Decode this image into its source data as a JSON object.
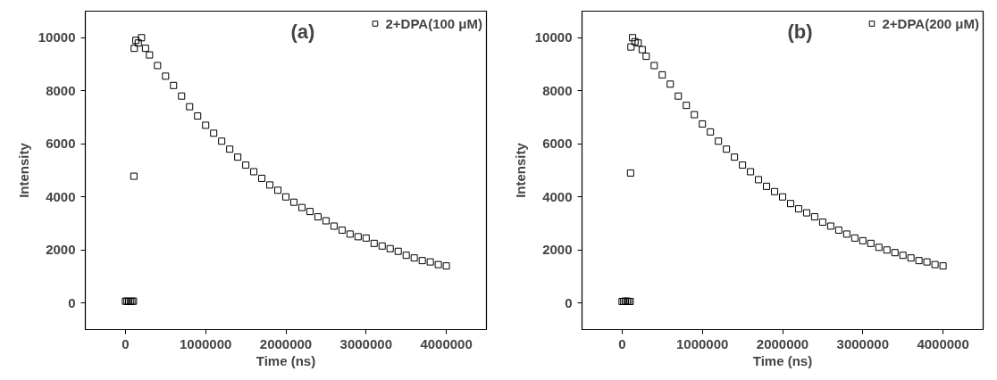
{
  "chart_data": [
    {
      "type": "scatter",
      "annotations": [
        "(a)"
      ],
      "xlabel": "Time (ns)",
      "ylabel": "Intensity",
      "legend": "top right",
      "grid": false,
      "marker": "square",
      "xlim": [
        -500000,
        4500000
      ],
      "ylim": [
        -1000,
        11000
      ],
      "xticks": [
        0,
        1000000,
        2000000,
        3000000,
        4000000
      ],
      "yticks": [
        0,
        2000,
        4000,
        6000,
        8000,
        10000
      ],
      "series": [
        {
          "name": "2+DPA(100 μM)",
          "color": "#000000",
          "x": [
            0,
            20000,
            40000,
            60000,
            80000,
            100000,
            105000,
            110000,
            130000,
            160000,
            200000,
            250000,
            300000,
            400000,
            500000,
            600000,
            700000,
            800000,
            900000,
            1000000,
            1100000,
            1200000,
            1300000,
            1400000,
            1500000,
            1600000,
            1700000,
            1800000,
            1900000,
            2000000,
            2100000,
            2200000,
            2300000,
            2400000,
            2500000,
            2600000,
            2700000,
            2800000,
            2900000,
            3000000,
            3100000,
            3200000,
            3300000,
            3400000,
            3500000,
            3600000,
            3700000,
            3800000,
            3900000,
            4000000
          ],
          "values": [
            70,
            70,
            60,
            60,
            70,
            70,
            4780,
            9600,
            9900,
            9800,
            10000,
            9600,
            9350,
            8950,
            8550,
            8200,
            7800,
            7400,
            7050,
            6700,
            6400,
            6100,
            5800,
            5500,
            5200,
            4950,
            4700,
            4450,
            4250,
            4000,
            3800,
            3600,
            3450,
            3250,
            3100,
            2900,
            2750,
            2600,
            2500,
            2450,
            2250,
            2150,
            2050,
            1950,
            1800,
            1700,
            1600,
            1550,
            1450,
            1400
          ]
        }
      ]
    },
    {
      "type": "scatter",
      "annotations": [
        "(b)"
      ],
      "xlabel": "Time (ns)",
      "ylabel": "Intensity",
      "legend": "top right",
      "grid": false,
      "marker": "square",
      "xlim": [
        -500000,
        4500000
      ],
      "ylim": [
        -1000,
        11000
      ],
      "xticks": [
        0,
        1000000,
        2000000,
        3000000,
        4000000
      ],
      "yticks": [
        0,
        2000,
        4000,
        6000,
        8000,
        10000
      ],
      "series": [
        {
          "name": "2+DPA(200 μM)",
          "color": "#000000",
          "x": [
            0,
            20000,
            40000,
            60000,
            80000,
            100000,
            105000,
            110000,
            130000,
            160000,
            200000,
            250000,
            300000,
            400000,
            500000,
            600000,
            700000,
            800000,
            900000,
            1000000,
            1100000,
            1200000,
            1300000,
            1400000,
            1500000,
            1600000,
            1700000,
            1800000,
            1900000,
            2000000,
            2100000,
            2200000,
            2300000,
            2400000,
            2500000,
            2600000,
            2700000,
            2800000,
            2900000,
            3000000,
            3100000,
            3200000,
            3300000,
            3400000,
            3500000,
            3600000,
            3700000,
            3800000,
            3900000,
            4000000
          ],
          "values": [
            60,
            60,
            70,
            70,
            60,
            60,
            4900,
            9650,
            10000,
            9850,
            9800,
            9550,
            9300,
            8950,
            8600,
            8250,
            7800,
            7450,
            7100,
            6750,
            6450,
            6100,
            5800,
            5500,
            5200,
            4950,
            4650,
            4400,
            4200,
            4000,
            3750,
            3550,
            3400,
            3250,
            3050,
            2900,
            2750,
            2600,
            2450,
            2350,
            2250,
            2100,
            2000,
            1900,
            1800,
            1700,
            1600,
            1550,
            1450,
            1400
          ]
        }
      ]
    }
  ]
}
